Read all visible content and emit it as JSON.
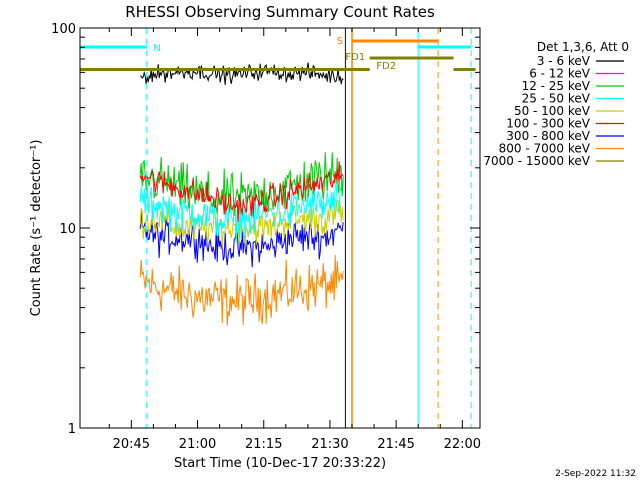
{
  "chart_data": {
    "type": "line",
    "title": "RHESSI Observing Summary Count Rates",
    "xlabel": "Start Time (10-Dec-17 20:33:22)",
    "ylabel": "Count Rate (s⁻¹ detector⁻¹)",
    "yscale": "log",
    "ylim": [
      1,
      100
    ],
    "xlim": [
      "20:33:22",
      "22:04:00"
    ],
    "x_ticks": [
      "20:45",
      "21:00",
      "21:15",
      "21:30",
      "21:45",
      "22:00"
    ],
    "y_ticks": [
      "1",
      "10",
      "100"
    ],
    "legend_title": "Det 1,3,6, Att 0",
    "legend_position": "right",
    "data_window": [
      "20:47:00",
      "21:33:00"
    ],
    "series": [
      {
        "name": "3 - 6 keV",
        "color": "#000000",
        "level": 59,
        "noise": 0.06,
        "values": [
          57,
          59,
          60,
          61,
          59,
          58,
          60,
          61,
          59,
          60,
          58,
          57
        ]
      },
      {
        "name": "6 - 12 keV",
        "color": "#ff00ff",
        "level": 59,
        "noise": 0.0,
        "values": []
      },
      {
        "name": "12 - 25 keV",
        "color": "#00cc00",
        "level": 17,
        "noise": 0.18,
        "values": [
          18,
          17,
          16,
          15,
          14,
          14,
          14,
          15,
          16,
          17,
          18,
          19
        ]
      },
      {
        "name": "25 - 50 keV",
        "color": "#00ffff",
        "level": 13,
        "noise": 0.14,
        "values": [
          14,
          13,
          12,
          12,
          11,
          11,
          11,
          12,
          12,
          13,
          13,
          14
        ]
      },
      {
        "name": "50 - 100 keV",
        "color": "#cccc00",
        "level": 11,
        "noise": 0.12,
        "values": [
          11,
          11,
          10,
          10,
          10,
          10,
          10,
          10,
          11,
          11,
          11,
          12
        ]
      },
      {
        "name": "100 - 300 keV",
        "color": "#ff0000",
        "level": 16,
        "noise": 0.1,
        "values": [
          19,
          17,
          16,
          15,
          14,
          13,
          13,
          14,
          15,
          16,
          17,
          18
        ]
      },
      {
        "name": "300 - 800 keV",
        "color": "#0000ff",
        "level": 9,
        "noise": 0.13,
        "values": [
          10,
          9,
          9,
          9,
          8,
          8,
          8,
          8,
          9,
          9,
          9,
          10
        ]
      },
      {
        "name": "800 - 7000 keV",
        "color": "#ff8800",
        "level": 5,
        "noise": 0.18,
        "values": [
          5.5,
          5,
          4.8,
          4.5,
          4.4,
          4.3,
          4.4,
          4.6,
          4.8,
          5,
          5.2,
          5.3
        ]
      },
      {
        "name": "7000 - 15000 keV",
        "color": "#808000",
        "level": 62,
        "noise": 0.0,
        "values": [
          62,
          62
        ]
      }
    ],
    "annotations": {
      "night_label": "N",
      "saa_label": "S",
      "flare_labels": [
        "FD1",
        "FD2"
      ]
    }
  },
  "footer_date": "2-Sep-2022 11:32"
}
